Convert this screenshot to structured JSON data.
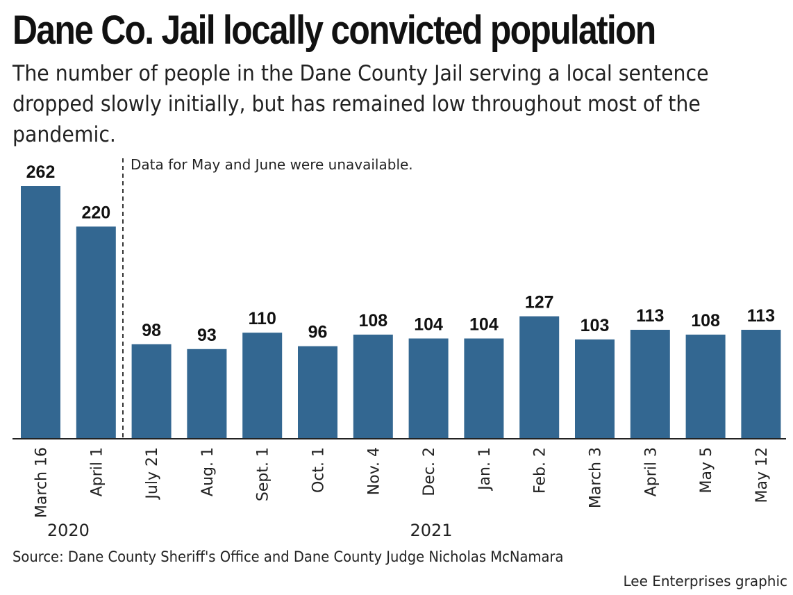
{
  "header": {
    "title": "Dane Co. Jail locally convicted population",
    "subtitle": "The number of people in the Dane County Jail serving a local sentence dropped slowly initially, but has remained low throughout most of the pandemic."
  },
  "chart_data": {
    "type": "bar",
    "categories": [
      "March 16",
      "April 1",
      "July 21",
      "Aug. 1",
      "Sept. 1",
      "Oct. 1",
      "Nov. 4",
      "Dec. 2",
      "Jan. 1",
      "Feb. 2",
      "March 3",
      "April 3",
      "May 5",
      "May 12"
    ],
    "values": [
      262,
      220,
      98,
      93,
      110,
      96,
      108,
      104,
      104,
      127,
      103,
      113,
      108,
      113
    ],
    "year_labels": [
      {
        "label": "2020",
        "start": 0,
        "end": 1
      },
      {
        "label": "2021",
        "start": 2,
        "end": 13
      }
    ],
    "annotation": "Data for May and June were unavailable.",
    "annotation_after_index": 1,
    "ylim": [
      0,
      262
    ],
    "bar_color": "#336791",
    "grid": false
  },
  "footer": {
    "source": "Source: Dane County Sheriff's Office and Dane County Judge Nicholas McNamara",
    "credit": "Lee Enterprises graphic"
  }
}
